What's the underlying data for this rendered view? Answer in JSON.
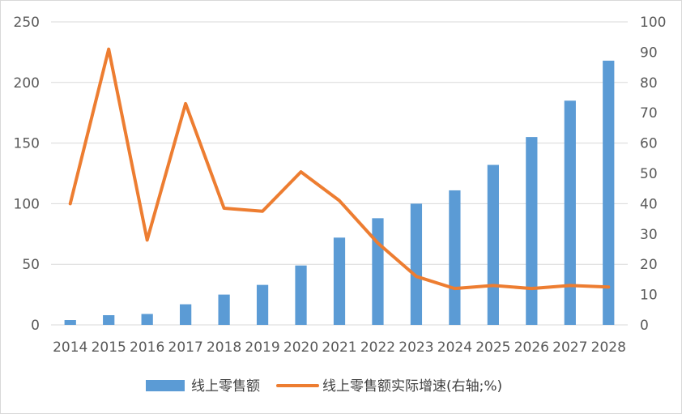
{
  "chart_data": {
    "type": "bar",
    "categories": [
      "2014",
      "2015",
      "2016",
      "2017",
      "2018",
      "2019",
      "2020",
      "2021",
      "2022",
      "2023",
      "2024",
      "2025",
      "2026",
      "2027",
      "2028"
    ],
    "series": [
      {
        "name": "线上零售额",
        "type": "bar",
        "axis": "left",
        "color": "#5b9bd5",
        "values": [
          4,
          8,
          9,
          17,
          25,
          33,
          49,
          72,
          88,
          100,
          111,
          132,
          155,
          185,
          218
        ]
      },
      {
        "name": "线上零售额实际增速(右轴;%)",
        "type": "line",
        "axis": "right",
        "color": "#ed7d31",
        "values": [
          40,
          91,
          28,
          73,
          38.5,
          37.5,
          50.5,
          41,
          27,
          16,
          12,
          13,
          12,
          13,
          12.5
        ]
      }
    ],
    "y_left": {
      "min": 0,
      "max": 250,
      "ticks": [
        "0",
        "50",
        "100",
        "150",
        "200",
        "250"
      ]
    },
    "y_right": {
      "min": 0,
      "max": 100,
      "ticks": [
        "0",
        "10",
        "20",
        "30",
        "40",
        "50",
        "60",
        "70",
        "80",
        "90",
        "100"
      ]
    },
    "grid": true,
    "legend_position": "bottom"
  }
}
